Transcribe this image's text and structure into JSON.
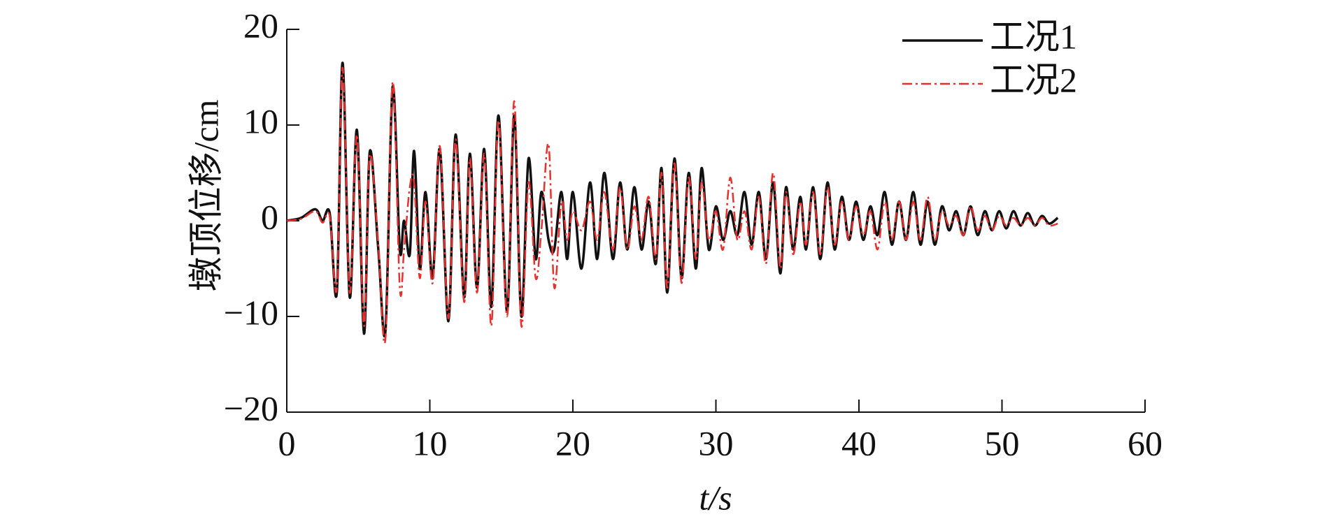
{
  "chart_data": {
    "type": "line",
    "x_label": "t/s",
    "y_label": "墩顶位移/cm",
    "xlim": [
      0,
      60
    ],
    "xticks": [
      0,
      10,
      20,
      30,
      40,
      50,
      60
    ],
    "ylim": [
      -20,
      20
    ],
    "yticks": [
      {
        "value": -20,
        "label": "−20"
      },
      {
        "value": -10,
        "label": "−10"
      },
      0,
      10,
      20
    ],
    "legend": "upper right",
    "x": [
      0,
      1,
      2,
      2.5,
      3,
      3.5,
      3.9,
      4.4,
      4.9,
      5.4,
      5.8,
      6.4,
      6.9,
      7.4,
      7.9,
      8.2,
      8.6,
      8.9,
      9.3,
      9.7,
      10.2,
      10.7,
      11.3,
      11.8,
      12.4,
      12.8,
      13.3,
      13.8,
      14.3,
      14.8,
      15.4,
      15.9,
      16.4,
      16.9,
      17.4,
      17.8,
      18.3,
      18.7,
      19.2,
      19.6,
      20,
      20.6,
      21.2,
      21.7,
      22.2,
      22.8,
      23.3,
      23.8,
      24.3,
      24.8,
      25.3,
      25.8,
      26.2,
      26.6,
      27.1,
      27.6,
      28.1,
      28.6,
      29,
      29.5,
      30,
      30.5,
      31,
      31.5,
      32,
      32.5,
      33,
      33.5,
      34,
      34.5,
      34.9,
      35.4,
      35.9,
      36.3,
      36.8,
      37.3,
      37.8,
      38.3,
      38.8,
      39.3,
      39.8,
      40.3,
      40.8,
      41.3,
      41.8,
      42.3,
      42.8,
      43.3,
      43.8,
      44.3,
      44.8,
      45.3,
      45.8,
      46.3,
      46.8,
      47.3,
      47.8,
      48.3,
      48.8,
      49.3,
      49.8,
      50.3,
      50.8,
      51.3,
      51.8,
      52.3,
      52.8,
      53.3,
      53.9
    ],
    "series": [
      {
        "name": "工况1",
        "color": "#111111",
        "dash": "solid",
        "values": [
          0,
          0.3,
          1.2,
          0,
          0.8,
          -7.5,
          16.5,
          -8,
          9.5,
          -11.8,
          7.2,
          -3,
          -11.5,
          14,
          -3,
          0,
          -3.5,
          7.3,
          -5,
          3,
          -6,
          7.5,
          -10.5,
          9,
          -8,
          7,
          -7,
          7.5,
          -9,
          11,
          -9.5,
          11,
          -10,
          6.5,
          -4,
          3,
          -2,
          -3,
          3,
          -4,
          3,
          -5,
          4,
          -4,
          5,
          -4,
          4,
          -3,
          3.5,
          -3,
          2,
          -4.5,
          5.5,
          -7.5,
          6.5,
          -6,
          5,
          -5,
          5.5,
          -3,
          1.5,
          -2,
          1,
          -1.5,
          3,
          -2.5,
          3,
          -4,
          4,
          -5.5,
          3.5,
          -3,
          2.5,
          -3,
          3.5,
          -4,
          4,
          -3,
          2.5,
          -2,
          2,
          -2,
          1.5,
          -1.5,
          3,
          -2.5,
          2,
          -2,
          3,
          -2.5,
          2,
          -2.5,
          1.5,
          -1,
          1,
          -1.5,
          1.5,
          -1.5,
          1,
          -1,
          1,
          -0.8,
          1,
          -0.5,
          0.8,
          -0.5,
          0.5,
          -0.3,
          0.3
        ]
      },
      {
        "name": "工况2",
        "color": "#e8312f",
        "dash": "dashdot",
        "values": [
          0,
          0.2,
          1,
          -0.2,
          0.5,
          -7,
          16,
          -7.5,
          9,
          -11,
          6.8,
          -2.5,
          -12.3,
          14.5,
          -7,
          -3,
          3.5,
          4,
          -6,
          2,
          -6.5,
          7.8,
          -10.2,
          8.5,
          -8.5,
          6.5,
          -7.5,
          7,
          -11,
          10.5,
          -10,
          12.5,
          -11,
          4,
          -6,
          -1,
          8,
          -7,
          2,
          -2,
          1,
          -1,
          2,
          -2,
          3,
          -3,
          3.5,
          -3,
          1.5,
          -2,
          2.5,
          -4,
          5,
          -7,
          6,
          -6.5,
          4.5,
          -4,
          4,
          -2,
          1,
          -3,
          4.5,
          -2,
          1,
          -3,
          2.5,
          -4.5,
          5,
          -5,
          3,
          -3.5,
          2,
          -2.5,
          3,
          -3.5,
          3.5,
          -2.5,
          2,
          -2,
          1.5,
          -1.5,
          1,
          -3,
          2,
          -2,
          2,
          -2,
          2,
          -2,
          2.5,
          -2,
          1,
          -0.5,
          0.5,
          -1.5,
          1.5,
          -1,
          0.5,
          -1,
          0.5,
          -0.5,
          0.3,
          -0.5,
          0.3,
          -0.5,
          0.3,
          -0.5,
          -0.3
        ]
      }
    ]
  }
}
